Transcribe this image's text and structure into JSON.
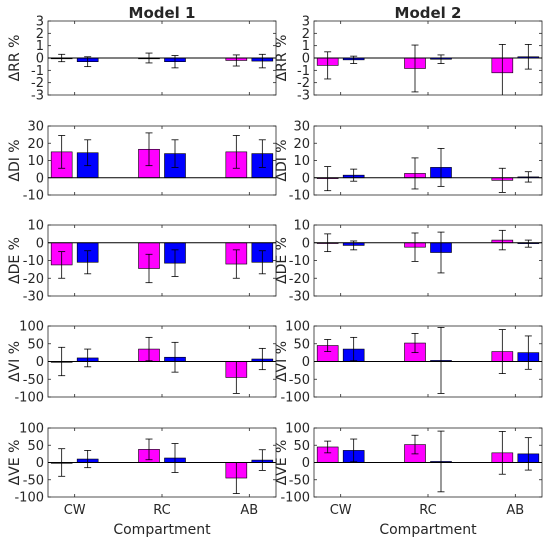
{
  "colors": {
    "model_a": "#ff00ff",
    "model_b": "#0000ff",
    "axis": "#262626",
    "errorbar": "#000000"
  },
  "chart_data": [
    {
      "type": "bar",
      "column": "Model 1",
      "ylabel": "ΔRR %",
      "categories": [
        "CW",
        "RC",
        "AB"
      ],
      "ylim": [
        -3,
        3
      ],
      "yticks": [
        -3,
        -2,
        -1,
        0,
        1,
        2,
        3
      ],
      "series": [
        {
          "values": [
            0,
            0,
            -0.2
          ],
          "err": [
            0.3,
            0.4,
            0.45
          ]
        },
        {
          "values": [
            -0.3,
            -0.3,
            -0.25
          ],
          "err": [
            0.4,
            0.5,
            0.55
          ]
        }
      ]
    },
    {
      "type": "bar",
      "column": "Model 2",
      "ylabel": "ΔRR %",
      "categories": [
        "CW",
        "RC",
        "AB"
      ],
      "ylim": [
        -3,
        3
      ],
      "yticks": [
        -3,
        -2,
        -1,
        0,
        1,
        2,
        3
      ],
      "series": [
        {
          "values": [
            -0.6,
            -0.85,
            -1.2
          ],
          "err": [
            1.1,
            1.9,
            2.3
          ]
        },
        {
          "values": [
            -0.15,
            -0.1,
            0.1
          ],
          "err": [
            0.3,
            0.35,
            1.0
          ]
        }
      ]
    },
    {
      "type": "bar",
      "column": "Model 1",
      "ylabel": "ΔDI %",
      "categories": [
        "CW",
        "RC",
        "AB"
      ],
      "ylim": [
        -10,
        30
      ],
      "yticks": [
        -10,
        0,
        10,
        20,
        30
      ],
      "series": [
        {
          "values": [
            15,
            16.5,
            15
          ],
          "err": [
            9.5,
            9.5,
            9.5
          ]
        },
        {
          "values": [
            14.5,
            14,
            14
          ],
          "err": [
            7.5,
            8,
            8
          ]
        }
      ]
    },
    {
      "type": "bar",
      "column": "Model 2",
      "ylabel": "ΔDI %",
      "categories": [
        "CW",
        "RC",
        "AB"
      ],
      "ylim": [
        -10,
        30
      ],
      "yticks": [
        -10,
        0,
        10,
        20,
        30
      ],
      "series": [
        {
          "values": [
            -0.5,
            2.5,
            -1.5
          ],
          "err": [
            7,
            9,
            7
          ]
        },
        {
          "values": [
            1.5,
            6,
            0.5
          ],
          "err": [
            3.5,
            11,
            3
          ]
        }
      ]
    },
    {
      "type": "bar",
      "column": "Model 1",
      "ylabel": "ΔDE %",
      "categories": [
        "CW",
        "RC",
        "AB"
      ],
      "ylim": [
        -30,
        10
      ],
      "yticks": [
        -30,
        -20,
        -10,
        0,
        10
      ],
      "series": [
        {
          "values": [
            -12.5,
            -14.5,
            -12
          ],
          "err": [
            7.5,
            8,
            8
          ]
        },
        {
          "values": [
            -11,
            -11.5,
            -11
          ],
          "err": [
            6.5,
            7.5,
            6.5
          ]
        }
      ]
    },
    {
      "type": "bar",
      "column": "Model 2",
      "ylabel": "ΔDE %",
      "categories": [
        "CW",
        "RC",
        "AB"
      ],
      "ylim": [
        -30,
        10
      ],
      "yticks": [
        -30,
        -20,
        -10,
        0,
        10
      ],
      "series": [
        {
          "values": [
            0,
            -2.5,
            1.5
          ],
          "err": [
            5,
            8,
            5.5
          ]
        },
        {
          "values": [
            -1.5,
            -5.5,
            -0.5
          ],
          "err": [
            2.5,
            11.5,
            2
          ]
        }
      ]
    },
    {
      "type": "bar",
      "column": "Model 1",
      "ylabel": "ΔVI %",
      "categories": [
        "CW",
        "RC",
        "AB"
      ],
      "ylim": [
        -100,
        100
      ],
      "yticks": [
        -100,
        -50,
        0,
        50,
        100
      ],
      "series": [
        {
          "values": [
            0,
            35,
            -45
          ],
          "err": [
            40,
            33,
            45
          ]
        },
        {
          "values": [
            10,
            12,
            7
          ],
          "err": [
            25,
            42,
            30
          ]
        }
      ]
    },
    {
      "type": "bar",
      "column": "Model 2",
      "ylabel": "ΔVI %",
      "categories": [
        "CW",
        "RC",
        "AB"
      ],
      "ylim": [
        -100,
        100
      ],
      "yticks": [
        -100,
        -50,
        0,
        50,
        100
      ],
      "series": [
        {
          "values": [
            45,
            52,
            28
          ],
          "err": [
            17,
            27,
            62
          ]
        },
        {
          "values": [
            35,
            3,
            25
          ],
          "err": [
            33,
            93,
            47
          ]
        }
      ]
    },
    {
      "type": "bar",
      "column": "Model 1",
      "ylabel": "ΔVE %",
      "categories": [
        "CW",
        "RC",
        "AB"
      ],
      "ylim": [
        -100,
        100
      ],
      "yticks": [
        -100,
        -50,
        0,
        50,
        100
      ],
      "series": [
        {
          "values": [
            0,
            38,
            -45
          ],
          "err": [
            40,
            30,
            45
          ]
        },
        {
          "values": [
            10,
            13,
            7
          ],
          "err": [
            25,
            42,
            30
          ]
        }
      ]
    },
    {
      "type": "bar",
      "column": "Model 2",
      "ylabel": "ΔVE %",
      "categories": [
        "CW",
        "RC",
        "AB"
      ],
      "ylim": [
        -100,
        100
      ],
      "yticks": [
        -100,
        -50,
        0,
        50,
        100
      ],
      "series": [
        {
          "values": [
            45,
            52,
            28
          ],
          "err": [
            17,
            27,
            62
          ]
        },
        {
          "values": [
            35,
            3,
            25
          ],
          "err": [
            33,
            88,
            47
          ]
        }
      ]
    }
  ],
  "column_titles": [
    "Model 1",
    "Model 2"
  ],
  "xlabel": "Compartment"
}
